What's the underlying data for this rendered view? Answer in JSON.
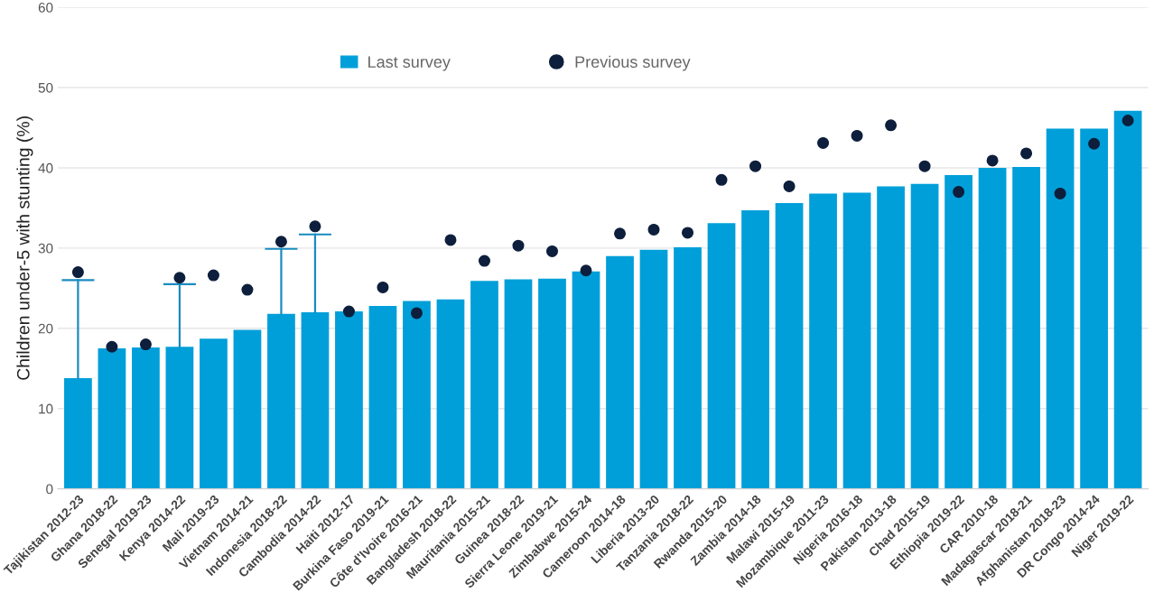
{
  "chart_data": {
    "type": "bar",
    "ylabel": "Children under-5 with stunting (%)",
    "categories": [
      "Tajikistan 2012-23",
      "Ghana 2018-22",
      "Senegal 2019-23",
      "Kenya 2014-22",
      "Mali 2019-23",
      "Vietnam 2014-21",
      "Indonesia 2018-22",
      "Cambodia 2014-22",
      "Haiti 2012-17",
      "Burkina Faso 2019-21",
      "Côte d'Ivoire 2016-21",
      "Bangladesh 2018-22",
      "Mauritania 2015-21",
      "Guinea 2018-22",
      "Sierra Leone 2019-21",
      "Zimbabwe 2015-24",
      "Cameroon 2014-18",
      "Liberia 2013-20",
      "Tanzania 2018-22",
      "Rwanda 2015-20",
      "Zambia 2014-18",
      "Malawi 2015-19",
      "Mozambique 2011-23",
      "Nigeria 2016-18",
      "Pakistan 2013-18",
      "Chad 2015-19",
      "Ethiopia 2019-22",
      "CAR 2010-18",
      "Madagascar 2018-21",
      "Afghanistan 2018-23",
      "DR Congo 2014-24",
      "Niger 2019-22"
    ],
    "series": [
      {
        "name": "Last survey",
        "color": "#009fd9",
        "values": [
          13.8,
          17.5,
          17.6,
          17.7,
          18.7,
          19.8,
          21.8,
          22.0,
          22.1,
          22.8,
          23.4,
          23.6,
          25.9,
          26.1,
          26.2,
          27.1,
          29.0,
          29.8,
          30.1,
          33.1,
          34.7,
          35.6,
          36.8,
          36.9,
          37.7,
          38.0,
          39.1,
          40.0,
          40.1,
          44.9,
          44.9,
          47.1
        ],
        "errors": [
          [
            13.8,
            26.0
          ],
          null,
          null,
          [
            17.7,
            25.5
          ],
          null,
          null,
          [
            21.8,
            29.9
          ],
          [
            22.0,
            31.7
          ],
          null,
          null,
          null,
          null,
          null,
          null,
          null,
          null,
          null,
          null,
          null,
          null,
          null,
          null,
          null,
          null,
          null,
          null,
          null,
          null,
          null,
          null,
          null,
          null
        ]
      },
      {
        "name": "Previous survey",
        "type": "scatter",
        "color": "#0d1f3c",
        "marker": "circle",
        "values": [
          27.0,
          17.7,
          18.0,
          26.3,
          26.6,
          24.8,
          30.8,
          32.7,
          22.1,
          25.1,
          21.9,
          31.0,
          28.4,
          30.3,
          29.6,
          27.2,
          31.8,
          32.3,
          31.9,
          38.5,
          40.2,
          37.7,
          43.1,
          44.0,
          45.3,
          40.2,
          37.0,
          40.9,
          41.8,
          36.8,
          43.0,
          45.9
        ]
      }
    ],
    "ylim": [
      0,
      60
    ],
    "yticks": [
      0,
      10,
      20,
      30,
      40,
      50,
      60
    ],
    "grid": "y",
    "legend": "top"
  }
}
